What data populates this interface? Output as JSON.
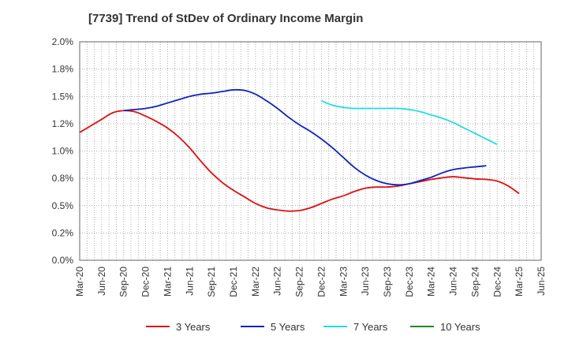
{
  "chart_data": {
    "type": "line",
    "title": "[7739]  Trend of StDev of Ordinary Income Margin",
    "xlabel": "",
    "ylabel": "",
    "x_ticks": [
      "Mar-20",
      "Jun-20",
      "Sep-20",
      "Dec-20",
      "Mar-21",
      "Jun-21",
      "Sep-21",
      "Dec-21",
      "Mar-22",
      "Jun-22",
      "Sep-22",
      "Dec-22",
      "Mar-23",
      "Jun-23",
      "Sep-23",
      "Dec-23",
      "Mar-24",
      "Jun-24",
      "Sep-24",
      "Dec-24",
      "Mar-25",
      "Jun-25"
    ],
    "y_ticks": [
      "0.0%",
      "0.2%",
      "0.5%",
      "0.8%",
      "1.0%",
      "1.2%",
      "1.5%",
      "1.8%",
      "2.0%"
    ],
    "y_tick_values": [
      0,
      0.25,
      0.5,
      0.75,
      1.0,
      1.25,
      1.5,
      1.75,
      2.0
    ],
    "ylim": [
      0,
      2.0
    ],
    "grid": true,
    "legend_position": "bottom",
    "series": [
      {
        "name": "3 Years",
        "color": "#dd1111",
        "points": [
          [
            0,
            1.17
          ],
          [
            1,
            1.23
          ],
          [
            2,
            1.29
          ],
          [
            3,
            1.35
          ],
          [
            4,
            1.37
          ],
          [
            5,
            1.36
          ],
          [
            6,
            1.32
          ],
          [
            7,
            1.27
          ],
          [
            8,
            1.21
          ],
          [
            9,
            1.13
          ],
          [
            10,
            1.03
          ],
          [
            11,
            0.91
          ],
          [
            12,
            0.8
          ],
          [
            13,
            0.71
          ],
          [
            14,
            0.64
          ],
          [
            15,
            0.58
          ],
          [
            16,
            0.52
          ],
          [
            17,
            0.48
          ],
          [
            18,
            0.46
          ],
          [
            19,
            0.45
          ],
          [
            20,
            0.455
          ],
          [
            21,
            0.48
          ],
          [
            22,
            0.52
          ],
          [
            23,
            0.56
          ],
          [
            24,
            0.59
          ],
          [
            25,
            0.63
          ],
          [
            26,
            0.66
          ],
          [
            27,
            0.67
          ],
          [
            28,
            0.67
          ],
          [
            29,
            0.68
          ],
          [
            30,
            0.7
          ],
          [
            31,
            0.72
          ],
          [
            32,
            0.74
          ],
          [
            33,
            0.755
          ],
          [
            34,
            0.765
          ],
          [
            35,
            0.755
          ],
          [
            36,
            0.745
          ],
          [
            37,
            0.74
          ],
          [
            38,
            0.725
          ],
          [
            39,
            0.68
          ],
          [
            40,
            0.61
          ]
        ]
      },
      {
        "name": "5 Years",
        "color": "#1122bb",
        "points": [
          [
            4,
            1.37
          ],
          [
            5,
            1.38
          ],
          [
            6,
            1.39
          ],
          [
            7,
            1.41
          ],
          [
            8,
            1.44
          ],
          [
            9,
            1.47
          ],
          [
            10,
            1.5
          ],
          [
            11,
            1.52
          ],
          [
            12,
            1.53
          ],
          [
            13,
            1.545
          ],
          [
            14,
            1.56
          ],
          [
            15,
            1.555
          ],
          [
            16,
            1.52
          ],
          [
            17,
            1.46
          ],
          [
            18,
            1.39
          ],
          [
            19,
            1.31
          ],
          [
            20,
            1.24
          ],
          [
            21,
            1.18
          ],
          [
            22,
            1.11
          ],
          [
            23,
            1.03
          ],
          [
            24,
            0.94
          ],
          [
            25,
            0.85
          ],
          [
            26,
            0.78
          ],
          [
            27,
            0.73
          ],
          [
            28,
            0.7
          ],
          [
            29,
            0.69
          ],
          [
            30,
            0.7
          ],
          [
            31,
            0.73
          ],
          [
            32,
            0.76
          ],
          [
            33,
            0.8
          ],
          [
            34,
            0.83
          ],
          [
            35,
            0.845
          ],
          [
            36,
            0.855
          ],
          [
            37,
            0.865
          ]
        ]
      },
      {
        "name": "7 Years",
        "color": "#22dddd",
        "points": [
          [
            22,
            1.46
          ],
          [
            23,
            1.42
          ],
          [
            24,
            1.4
          ],
          [
            25,
            1.39
          ],
          [
            26,
            1.39
          ],
          [
            27,
            1.39
          ],
          [
            28,
            1.39
          ],
          [
            29,
            1.39
          ],
          [
            30,
            1.38
          ],
          [
            31,
            1.36
          ],
          [
            32,
            1.33
          ],
          [
            33,
            1.3
          ],
          [
            34,
            1.26
          ],
          [
            35,
            1.21
          ],
          [
            36,
            1.16
          ],
          [
            37,
            1.11
          ],
          [
            38,
            1.06
          ]
        ]
      },
      {
        "name": "10 Years",
        "color": "#228822",
        "points": []
      }
    ]
  }
}
